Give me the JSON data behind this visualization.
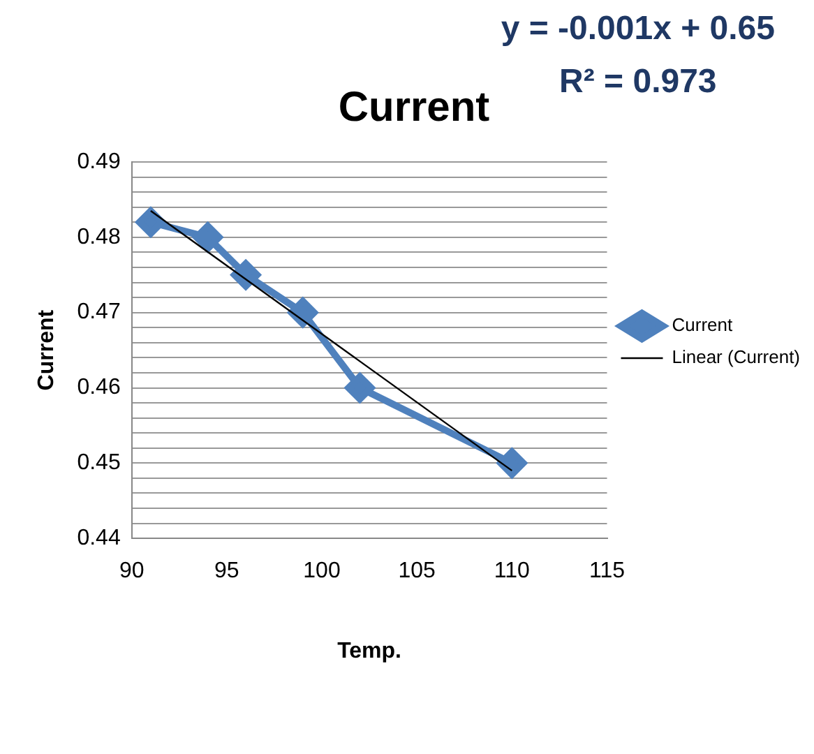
{
  "chart_data": {
    "type": "line",
    "title": "Current",
    "xlabel": "Temp.",
    "ylabel": "Current",
    "annotations": [
      "y = -0.001x + 0.65",
      "R² = 0.973"
    ],
    "x": [
      91,
      94,
      96,
      99,
      102,
      110
    ],
    "series": [
      {
        "name": "Current",
        "color": "#4f81bd",
        "values": [
          0.482,
          0.48,
          0.475,
          0.47,
          0.46,
          0.45
        ],
        "marker": "diamond"
      },
      {
        "name": "Linear (Current)",
        "type": "line",
        "color": "#000000",
        "x": [
          91,
          110
        ],
        "values": [
          0.4835,
          0.449
        ],
        "marker": "none"
      }
    ],
    "xlim": [
      90,
      115
    ],
    "xticks": [
      90,
      95,
      100,
      105,
      110,
      115
    ],
    "ylim": [
      0.44,
      0.49
    ],
    "yticks": [
      0.44,
      {
        "value": 0.442,
        "label": null
      },
      {
        "value": 0.444,
        "label": null
      },
      {
        "value": 0.446,
        "label": null
      },
      {
        "value": 0.448,
        "label": null
      },
      0.45,
      {
        "value": 0.452,
        "label": null
      },
      {
        "value": 0.454,
        "label": null
      },
      {
        "value": 0.456,
        "label": null
      },
      {
        "value": 0.458,
        "label": null
      },
      0.46,
      {
        "value": 0.462,
        "label": null
      },
      {
        "value": 0.464,
        "label": null
      },
      {
        "value": 0.466,
        "label": null
      },
      {
        "value": 0.468,
        "label": null
      },
      0.47,
      {
        "value": 0.472,
        "label": null
      },
      {
        "value": 0.474,
        "label": null
      },
      {
        "value": 0.476,
        "label": null
      },
      {
        "value": 0.478,
        "label": null
      },
      0.48,
      {
        "value": 0.482,
        "label": null
      },
      {
        "value": 0.484,
        "label": null
      },
      {
        "value": 0.486,
        "label": null
      },
      {
        "value": 0.488,
        "label": null
      },
      0.49
    ],
    "grid": "y",
    "legend": "right"
  }
}
